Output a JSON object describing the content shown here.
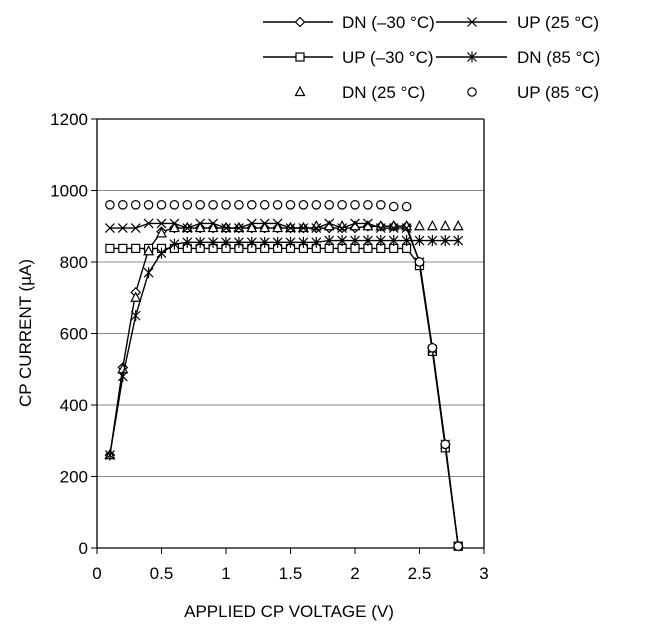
{
  "chart_data": {
    "type": "line",
    "title": "",
    "xlabel": "APPLIED CP VOLTAGE (V)",
    "ylabel": "CP CURRENT (µA)",
    "xlim": [
      0,
      3
    ],
    "ylim": [
      0,
      1200
    ],
    "x_ticks": [
      "0",
      "0.5",
      "1",
      "1.5",
      "2",
      "2.5",
      "3"
    ],
    "y_ticks": [
      "0",
      "200",
      "400",
      "600",
      "800",
      "1000",
      "1200"
    ],
    "grid": "horizontal",
    "legend_position": "top",
    "x": [
      0.1,
      0.2,
      0.3,
      0.4,
      0.5,
      0.6,
      0.7,
      0.8,
      0.9,
      1.0,
      1.1,
      1.2,
      1.3,
      1.4,
      1.5,
      1.6,
      1.7,
      1.8,
      1.9,
      2.0,
      2.1,
      2.2,
      2.3,
      2.4,
      2.5,
      2.6,
      2.7,
      2.8
    ],
    "series": [
      {
        "name": "DN (–30 °C)",
        "marker": "diamond",
        "line": true,
        "values": [
          260,
          505,
          715,
          835,
          885,
          895,
          895,
          895,
          895,
          895,
          895,
          895,
          895,
          895,
          895,
          895,
          895,
          895,
          895,
          895,
          900,
          900,
          900,
          900,
          800,
          560,
          290,
          5
        ]
      },
      {
        "name": "UP (–30 °C)",
        "marker": "square",
        "line": true,
        "values": [
          838,
          838,
          838,
          838,
          838,
          838,
          838,
          838,
          838,
          838,
          838,
          838,
          838,
          838,
          838,
          838,
          838,
          838,
          838,
          838,
          838,
          838,
          838,
          838,
          790,
          550,
          280,
          5
        ]
      },
      {
        "name": "DN (25 °C)",
        "marker": "triangle",
        "line": false,
        "values": [
          260,
          500,
          700,
          830,
          880,
          895,
          895,
          895,
          895,
          895,
          895,
          895,
          895,
          895,
          895,
          895,
          900,
          900,
          900,
          900,
          900,
          900,
          900,
          900,
          900,
          900,
          900,
          900
        ]
      },
      {
        "name": "UP (25 °C)",
        "marker": "x",
        "line": true,
        "values": [
          895,
          895,
          895,
          908,
          908,
          908,
          895,
          908,
          908,
          895,
          895,
          908,
          908,
          908,
          895,
          895,
          895,
          908,
          895,
          908,
          908,
          895,
          895,
          895,
          800,
          555,
          290,
          5
        ]
      },
      {
        "name": "DN (85 °C)",
        "marker": "asterisk",
        "line": true,
        "values": [
          260,
          480,
          650,
          770,
          825,
          850,
          855,
          855,
          855,
          855,
          855,
          855,
          855,
          855,
          855,
          855,
          855,
          860,
          860,
          860,
          860,
          860,
          860,
          860,
          860,
          860,
          860,
          860
        ]
      },
      {
        "name": "UP (85 °C)",
        "marker": "circle",
        "line": false,
        "values": [
          960,
          960,
          960,
          960,
          960,
          960,
          960,
          960,
          960,
          960,
          960,
          960,
          960,
          960,
          960,
          960,
          960,
          960,
          960,
          960,
          960,
          960,
          955,
          955,
          800,
          560,
          290,
          5
        ]
      }
    ]
  }
}
